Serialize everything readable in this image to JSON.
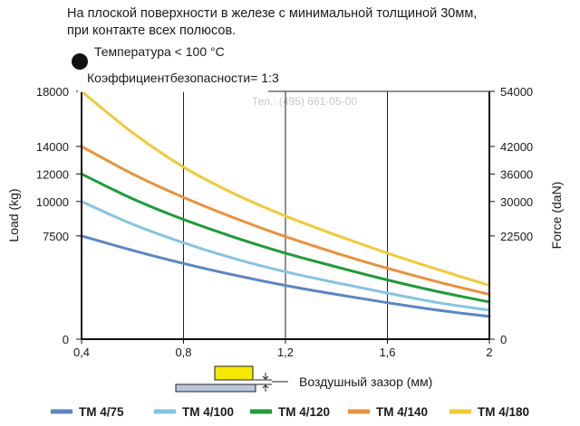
{
  "header": {
    "line1": "На плоской поверхности в железе с минимальной толщиной 30мм,",
    "line2": "при контакте всех полюсов."
  },
  "notes": {
    "temperature": "Температура < 100 °C",
    "safety": "Коэффициентбезопасности= 1:3"
  },
  "watermark": {
    "phone": "Тел.: (495) 661-05-00"
  },
  "air_gap_label": "Воздушный зазор (мм)",
  "chart_data": {
    "type": "line",
    "title": "",
    "xlabel": "Воздушный зазор (мм)",
    "ylabel": "Load (kg)",
    "y2label": "Force (daN)",
    "xlim": [
      0.4,
      2
    ],
    "ylim": [
      0,
      18000
    ],
    "y2lim": [
      0,
      54000
    ],
    "x_ticks": [
      0.4,
      0.8,
      1.2,
      1.6,
      2
    ],
    "x_tick_labels": [
      "0,4",
      "0,8",
      "1,2",
      "1,6",
      "2"
    ],
    "y_ticks": [
      0,
      7500,
      10000,
      12000,
      14000,
      18000
    ],
    "y_tick_labels": [
      "0",
      "7500",
      "10000",
      "12000",
      "14000",
      "18000"
    ],
    "y2_ticks": [
      0,
      22500,
      30000,
      36000,
      42000,
      54000
    ],
    "y2_tick_labels": [
      "0",
      "22500",
      "30000",
      "36000",
      "42000",
      "54000"
    ],
    "grid": true,
    "legend_position": "bottom",
    "x": [
      0.4,
      0.6,
      0.8,
      1.0,
      1.2,
      1.4,
      1.6,
      1.8,
      2.0
    ],
    "series": [
      {
        "name": "TM 4/75",
        "color": "#5b86c2",
        "values": [
          7500,
          6450,
          5500,
          4650,
          3900,
          3250,
          2650,
          2100,
          1650
        ]
      },
      {
        "name": "TM 4/100",
        "color": "#86c4df",
        "values": [
          10000,
          8350,
          7000,
          5850,
          4900,
          4100,
          3350,
          2650,
          2100
        ]
      },
      {
        "name": "TM 4/120",
        "color": "#1f9a3a",
        "values": [
          12000,
          10200,
          8700,
          7400,
          6250,
          5250,
          4300,
          3450,
          2700
        ]
      },
      {
        "name": "TM 4/140",
        "color": "#e8913e",
        "values": [
          14000,
          12000,
          10300,
          8800,
          7450,
          6250,
          5150,
          4150,
          3250
        ]
      },
      {
        "name": "TM 4/180",
        "color": "#f0c93a",
        "values": [
          18000,
          15000,
          12500,
          10550,
          8950,
          7550,
          6250,
          5050,
          3900
        ]
      }
    ]
  }
}
